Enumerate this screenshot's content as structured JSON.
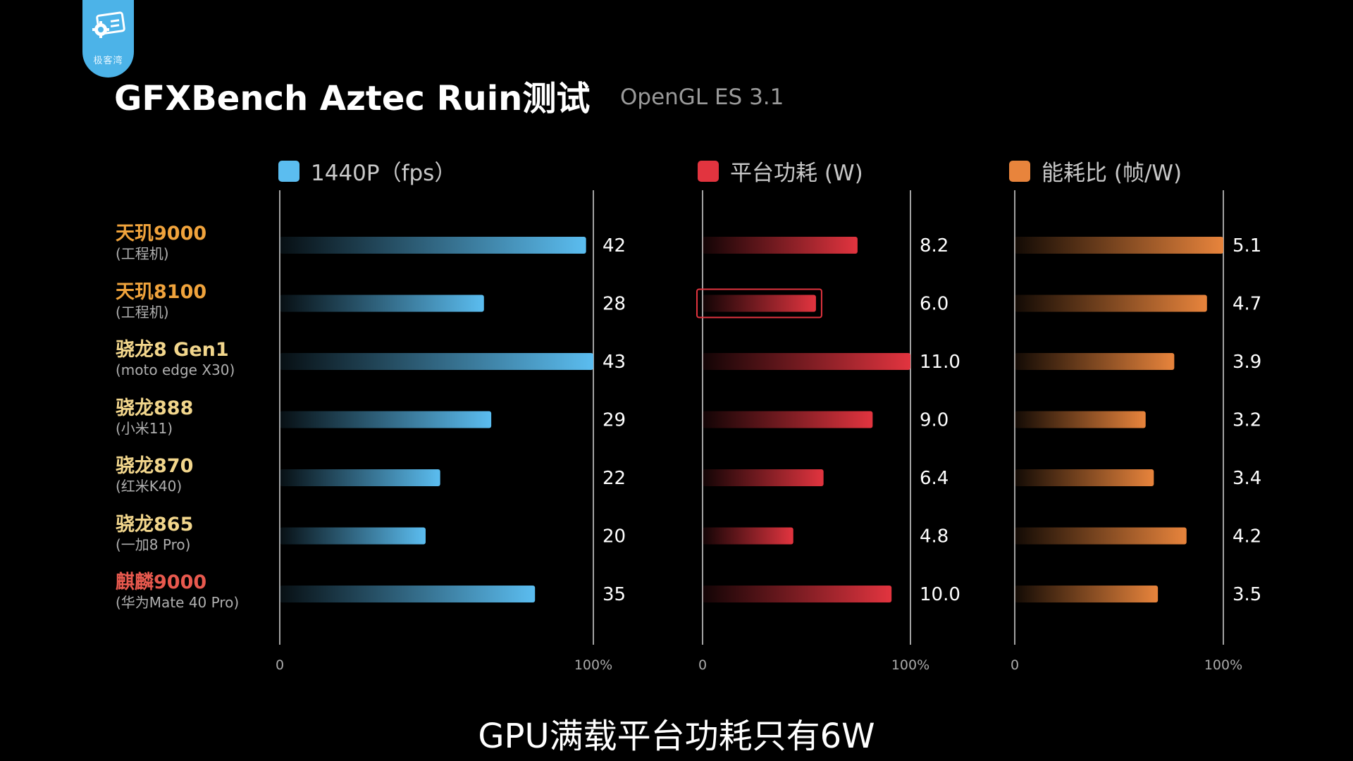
{
  "brand": {
    "logo_icon": "gear-card-icon",
    "logo_text": "极客湾"
  },
  "header": {
    "title": "GFXBench Aztec Ruin测试",
    "subtitle": "OpenGL ES 3.1"
  },
  "caption": "GPU满载平台功耗只有6W",
  "chart_data": {
    "type": "bar",
    "orientation": "horizontal",
    "categories": [
      {
        "name": "天玑9000",
        "device": "(工程机)",
        "color": "#f0a33c"
      },
      {
        "name": "天玑8100",
        "device": "(工程机)",
        "color": "#f0a33c"
      },
      {
        "name": "骁龙8 Gen1",
        "device": "(moto edge X30)",
        "color": "#f2d68c"
      },
      {
        "name": "骁龙888",
        "device": "(小米11)",
        "color": "#f2d68c"
      },
      {
        "name": "骁龙870",
        "device": "(红米K40)",
        "color": "#f2d68c"
      },
      {
        "name": "骁龙865",
        "device": "(一加8 Pro)",
        "color": "#f2d68c"
      },
      {
        "name": "麒麟9000",
        "device": "(华为Mate 40 Pro)",
        "color": "#e8594e"
      }
    ],
    "series": [
      {
        "name": "1440P（fps）",
        "color": "#5bbdf0",
        "values": [
          42,
          28,
          43,
          29,
          22,
          20,
          35
        ],
        "value_labels": [
          "42",
          "28",
          "43",
          "29",
          "22",
          "20",
          "35"
        ],
        "max": 43,
        "axis_min_label": "0",
        "axis_max_label": "100%"
      },
      {
        "name": "平台功耗 (W)",
        "color": "#e2343f",
        "values": [
          8.2,
          6.0,
          11.0,
          9.0,
          6.4,
          4.8,
          10.0
        ],
        "value_labels": [
          "8.2",
          "6.0",
          "11.0",
          "9.0",
          "6.4",
          "4.8",
          "10.0"
        ],
        "max": 11.0,
        "axis_min_label": "0",
        "axis_max_label": "100%",
        "highlight_index": 1,
        "highlight_color": "#e2343f"
      },
      {
        "name": "能耗比 (帧/W)",
        "color": "#e8843c",
        "values": [
          5.1,
          4.7,
          3.9,
          3.2,
          3.4,
          4.2,
          3.5
        ],
        "value_labels": [
          "5.1",
          "4.7",
          "3.9",
          "3.2",
          "3.4",
          "4.2",
          "3.5"
        ],
        "max": 5.1,
        "axis_min_label": "0",
        "axis_max_label": "100%"
      }
    ],
    "grid": false,
    "legend_position": "top"
  }
}
